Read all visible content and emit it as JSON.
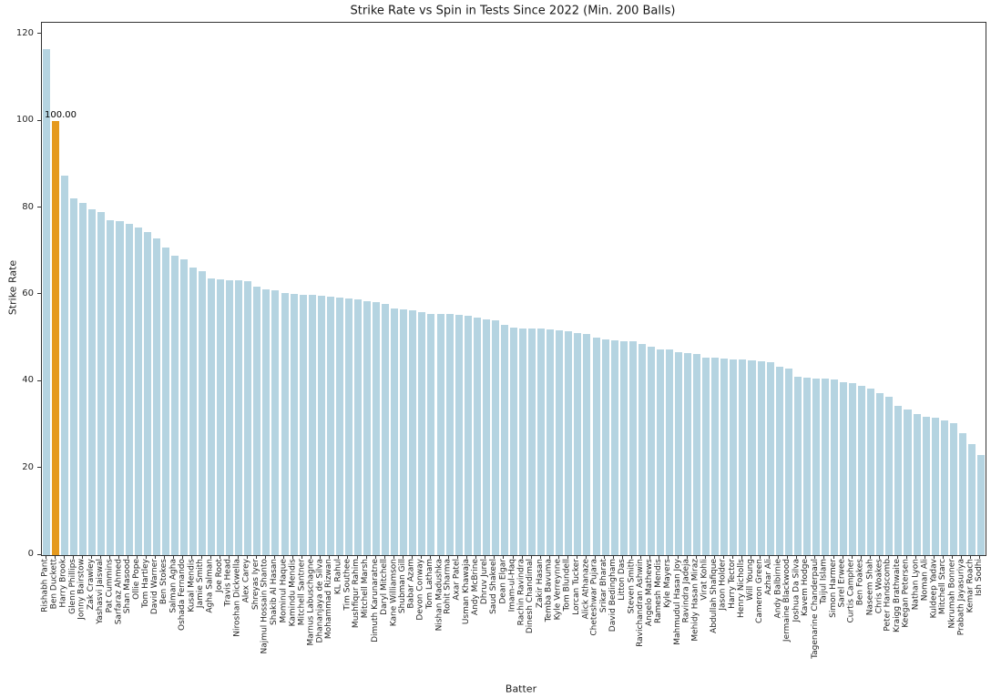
{
  "chart_data": {
    "type": "bar",
    "title": "Strike Rate vs Spin in Tests Since 2022 (Min. 200 Balls)",
    "xlabel": "Batter",
    "ylabel": "Strike Rate",
    "ylim": [
      0,
      122.7
    ],
    "yticks": [
      0,
      20,
      40,
      60,
      80,
      100,
      120
    ],
    "grid": false,
    "legend": "none",
    "bar_color": "#b5d4e1",
    "highlight_color": "#e5991d",
    "highlight_index": 1,
    "annotation": {
      "text": "100.00",
      "target": "Ben Duckett"
    },
    "categories": [
      "Rishabh Pant",
      "Ben Duckett",
      "Harry Brook",
      "Glenn Phillips",
      "Jonny Bairstow",
      "Zak Crawley",
      "Yashasvi Jaiswal",
      "Pat Cummins",
      "Sarfaraz Ahmed",
      "Shan Masood",
      "Ollie Pope",
      "Tom Hartley",
      "David Warner",
      "Ben Stokes",
      "Salman Agha",
      "Oshada Fernando",
      "Kusal Mendis",
      "Jamie Smith",
      "Agha Salman",
      "Joe Root",
      "Travis Head",
      "Niroshan Dickwella",
      "Alex Carey",
      "Shreyas Iyer",
      "Najmul Hossain Shanto",
      "Shakib Al Hasan",
      "Mominul Haque",
      "Kamindu Mendis",
      "Mitchell Santner",
      "Marnus Labuschagne",
      "Dhananjaya de Silva",
      "Mohammad Rizwan",
      "KL Rahul",
      "Tim Southee",
      "Mushfiqur Rahim",
      "Mitchell Marsh",
      "Dimuth Karunaratne",
      "Daryl Mitchell",
      "Kane Williamson",
      "Shubman Gill",
      "Babar Azam",
      "Devon Conway",
      "Tom Latham",
      "Nishan Madushka",
      "Rohit Sharma",
      "Axar Patel",
      "Usman Khawaja",
      "Andy McBrine",
      "Dhruv Jurel",
      "Saud Shakeel",
      "Dean Elgar",
      "Imam-ul-Haq",
      "Rachin Ravindra",
      "Dinesh Chandimal",
      "Zakir Hasan",
      "Temba Bavuma",
      "Kyle Verreynne",
      "Tom Blundell",
      "Lorcan Tucker",
      "Alick Athanaze",
      "Cheteshwar Pujara",
      "Srikar Bharat",
      "David Bedingham",
      "Litton Das",
      "Steven Smith",
      "Ravichandran Ashwin",
      "Angelo Mathews",
      "Ramesh Mendis",
      "Kyle Mayers",
      "Mahmudul Hasan Joy",
      "Ravindra Jadeja",
      "Mehidy Hasan Miraz",
      "Virat Kohli",
      "Abdullah Shafique",
      "Jason Holder",
      "Harry Tector",
      "Henry Nicholls",
      "Will Young",
      "Cameron Green",
      "Azhar Ali",
      "Andy Balbirnie",
      "Jermaine Blackwood",
      "Joshua Da Silva",
      "Kavem Hodge",
      "Tagenarine Chanderpaul",
      "Taijul Islam",
      "Simon Harmer",
      "Sarel Erwee",
      "Curtis Campher",
      "Ben Foakes",
      "Naseem Shah",
      "Chris Woakes",
      "Peter Handscomb",
      "Kraigg Brathwaite",
      "Keegan Petersen",
      "Nathan Lyon",
      "Noman Ali",
      "Kuldeep Yadav",
      "Mitchell Starc",
      "Nkrumah Bonner",
      "Prabath Jayasuriya",
      "Kemar Roach",
      "Ish Sodhi"
    ],
    "values": [
      116.7,
      100.0,
      87.5,
      82.2,
      81.1,
      79.8,
      79.1,
      77.2,
      77.0,
      76.4,
      75.6,
      74.4,
      72.9,
      71.0,
      69.0,
      68.2,
      66.2,
      65.5,
      63.7,
      63.6,
      63.4,
      63.3,
      63.1,
      61.9,
      61.3,
      61.0,
      60.4,
      60.2,
      60.0,
      59.9,
      59.7,
      59.5,
      59.4,
      59.2,
      59.0,
      58.6,
      58.3,
      57.9,
      56.9,
      56.6,
      56.4,
      56.0,
      55.6,
      55.5,
      55.5,
      55.4,
      55.1,
      54.7,
      54.3,
      54.1,
      53.0,
      52.5,
      52.3,
      52.2,
      52.2,
      52.1,
      51.9,
      51.6,
      51.2,
      50.9,
      50.2,
      49.8,
      49.4,
      49.3,
      49.3,
      48.6,
      48.1,
      47.4,
      47.4,
      46.8,
      46.5,
      46.3,
      45.6,
      45.5,
      45.4,
      45.2,
      45.0,
      44.9,
      44.7,
      44.4,
      43.5,
      42.9,
      41.1,
      40.9,
      40.7,
      40.7,
      40.5,
      39.8,
      39.6,
      39.0,
      38.4,
      37.4,
      36.4,
      34.5,
      33.6,
      32.6,
      31.8,
      31.6,
      31.1,
      30.5,
      28.1,
      25.6,
      23.0
    ]
  }
}
